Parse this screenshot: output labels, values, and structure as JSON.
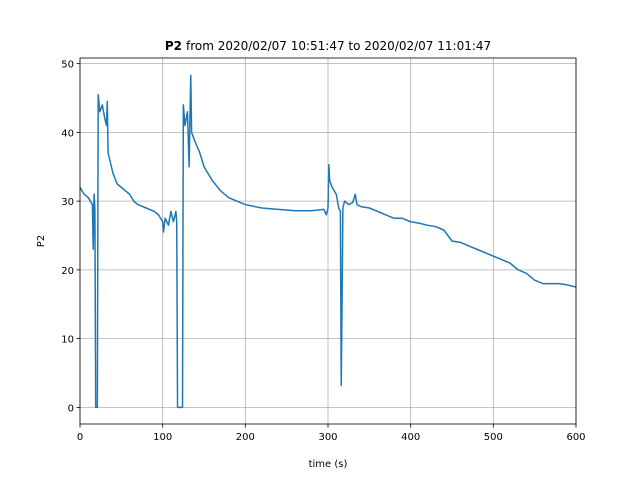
{
  "chart_data": {
    "type": "line",
    "title_bold": "P2",
    "title": "from 2020/02/07 10:51:47 to 2020/02/07 11:01:47",
    "xlabel": "time (s)",
    "ylabel": "P2",
    "color": "#1f77b4",
    "grid": true,
    "xlim": [
      0,
      600
    ],
    "ylim": [
      -2.42,
      50.82
    ],
    "xticks": [
      0,
      100,
      200,
      300,
      400,
      500,
      600
    ],
    "yticks": [
      0,
      10,
      20,
      30,
      40,
      50
    ],
    "x": [
      0,
      5,
      10,
      15,
      16,
      17,
      18,
      19,
      20,
      21,
      22,
      24,
      27,
      30,
      32,
      33,
      34,
      36,
      40,
      45,
      50,
      55,
      60,
      65,
      70,
      80,
      90,
      95,
      100,
      101,
      103,
      107,
      110,
      113,
      116,
      117,
      118,
      122,
      124,
      125,
      127,
      130,
      132,
      133,
      134,
      135,
      138,
      145,
      150,
      160,
      170,
      180,
      190,
      200,
      220,
      240,
      260,
      280,
      295,
      298,
      300,
      301,
      302,
      305,
      310,
      313,
      315,
      316,
      317,
      318,
      320,
      325,
      330,
      333,
      335,
      340,
      350,
      360,
      370,
      380,
      390,
      400,
      410,
      420,
      430,
      440,
      445,
      450,
      460,
      470,
      480,
      490,
      500,
      510,
      520,
      530,
      540,
      550,
      560,
      570,
      580,
      590,
      600
    ],
    "values": [
      32,
      31,
      30.5,
      29.5,
      23,
      31,
      29,
      0,
      0,
      0,
      45.5,
      43,
      44,
      42,
      41,
      44.5,
      37,
      36,
      34,
      32.5,
      32,
      31.5,
      31,
      30,
      29.5,
      29,
      28.5,
      28,
      27,
      25.5,
      27.5,
      26.5,
      28.5,
      27,
      28.5,
      27,
      0,
      0,
      0,
      44,
      41,
      43,
      35,
      42,
      48.3,
      40,
      39,
      37,
      35,
      33,
      31.5,
      30.5,
      30,
      29.5,
      29,
      28.8,
      28.6,
      28.6,
      28.8,
      28,
      29,
      35.3,
      33,
      32,
      31,
      29,
      28.5,
      3.2,
      15,
      29,
      30,
      29.5,
      29.8,
      31,
      29.5,
      29.2,
      29,
      28.5,
      28,
      27.5,
      27.5,
      27,
      26.8,
      26.5,
      26.3,
      25.8,
      25,
      24.2,
      24,
      23.5,
      23,
      22.5,
      22,
      21.5,
      21,
      20,
      19.5,
      18.5,
      18,
      18,
      18,
      17.8,
      17.5
    ]
  }
}
